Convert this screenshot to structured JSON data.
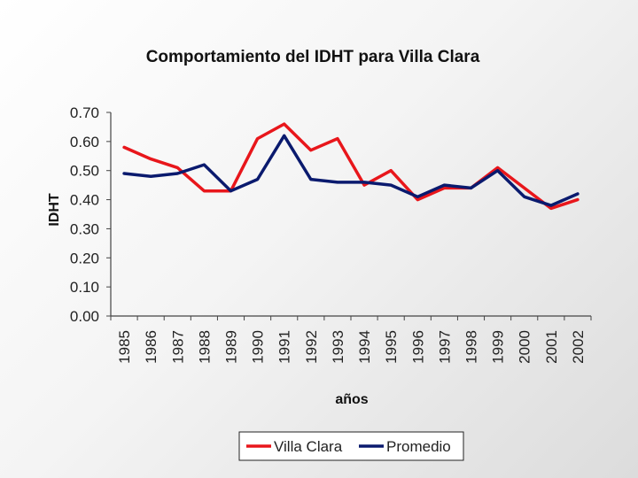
{
  "chart_data": {
    "type": "line",
    "title": "Comportamiento del IDHT para Villa Clara",
    "xlabel": "años",
    "ylabel": "IDHT",
    "categories": [
      "1985",
      "1986",
      "1987",
      "1988",
      "1989",
      "1990",
      "1991",
      "1992",
      "1993",
      "1994",
      "1995",
      "1996",
      "1997",
      "1998",
      "1999",
      "2000",
      "2001",
      "2002"
    ],
    "y_ticks": [
      "0.00",
      "0.10",
      "0.20",
      "0.30",
      "0.40",
      "0.50",
      "0.60",
      "0.70"
    ],
    "ylim": [
      0,
      0.7
    ],
    "grid": false,
    "legend_position": "bottom",
    "series": [
      {
        "name": "Villa Clara",
        "color": "#e8161b",
        "values": [
          0.58,
          0.54,
          0.51,
          0.43,
          0.43,
          0.61,
          0.66,
          0.57,
          0.61,
          0.45,
          0.5,
          0.4,
          0.44,
          0.44,
          0.51,
          0.44,
          0.37,
          0.4
        ]
      },
      {
        "name": "Promedio",
        "color": "#0a1a6e",
        "values": [
          0.49,
          0.48,
          0.49,
          0.52,
          0.43,
          0.47,
          0.62,
          0.47,
          0.46,
          0.46,
          0.45,
          0.41,
          0.45,
          0.44,
          0.5,
          0.41,
          0.38,
          0.42
        ]
      }
    ]
  }
}
